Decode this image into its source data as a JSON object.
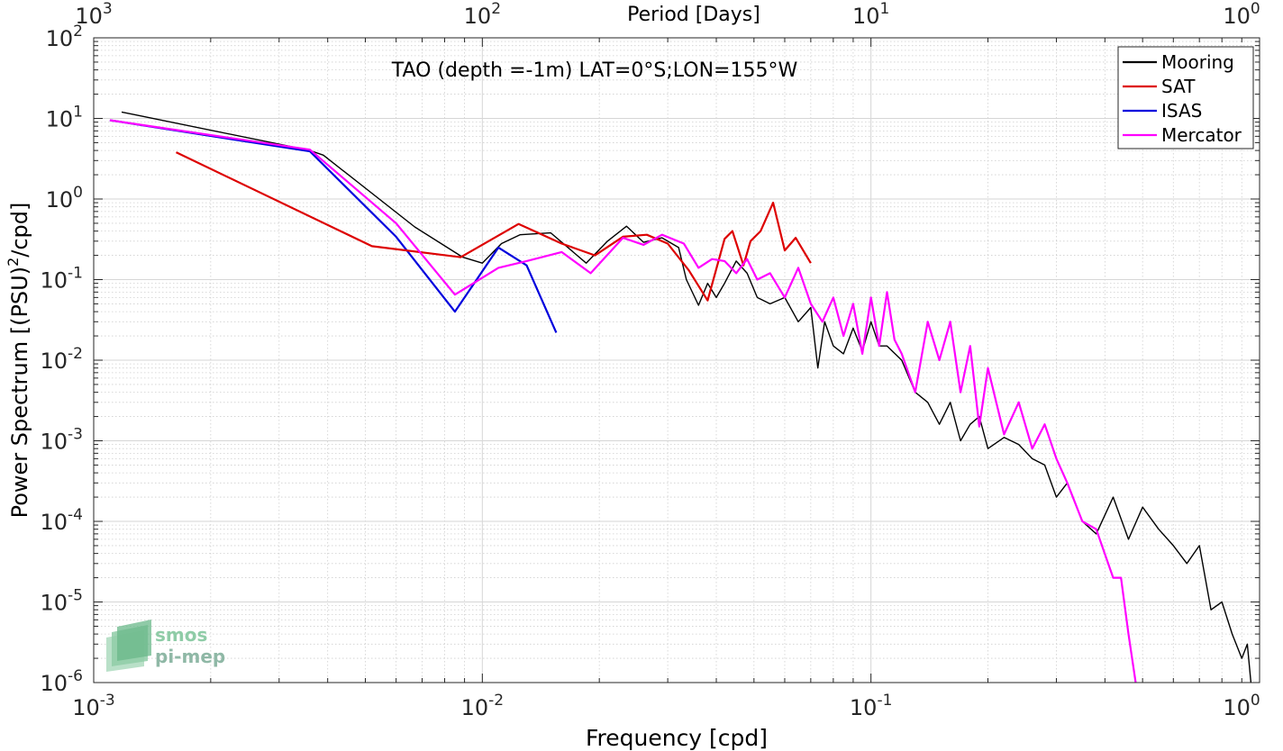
{
  "chart_data": {
    "type": "line",
    "title": "TAO (depth =-1m) LAT=0°S;LON=155°W",
    "xlabel": "Frequency [cpd]",
    "ylabel": "Power Spectrum [(PSU)^2/cpd]",
    "top_xlabel": "Period [Days]",
    "x_scale": "log",
    "y_scale": "log",
    "xlim": [
      0.001,
      1
    ],
    "ylim": [
      1e-06,
      100
    ],
    "grid": true,
    "legend_position": "top-right",
    "x_tick_labels": [
      {
        "value": 0.001,
        "base": "10",
        "exp": "-3"
      },
      {
        "value": 0.01,
        "base": "10",
        "exp": "-2"
      },
      {
        "value": 0.1,
        "base": "10",
        "exp": "-1"
      },
      {
        "value": 1,
        "base": "10",
        "exp": "0"
      }
    ],
    "top_tick_labels": [
      {
        "value": 0.001,
        "base": "10",
        "exp": "3"
      },
      {
        "value": 0.01,
        "base": "10",
        "exp": "2"
      },
      {
        "value": 0.1,
        "base": "10",
        "exp": "1"
      },
      {
        "value": 1,
        "base": "10",
        "exp": "0"
      }
    ],
    "y_tick_labels": [
      {
        "value": 100,
        "base": "10",
        "exp": "2"
      },
      {
        "value": 10,
        "base": "10",
        "exp": "1"
      },
      {
        "value": 1,
        "base": "10",
        "exp": "0"
      },
      {
        "value": 0.1,
        "base": "10",
        "exp": "-1"
      },
      {
        "value": 0.01,
        "base": "10",
        "exp": "-2"
      },
      {
        "value": 0.001,
        "base": "10",
        "exp": "-3"
      },
      {
        "value": 0.0001,
        "base": "10",
        "exp": "-4"
      },
      {
        "value": 1e-05,
        "base": "10",
        "exp": "-5"
      },
      {
        "value": 1e-06,
        "base": "10",
        "exp": "-6"
      }
    ],
    "series": [
      {
        "name": "Mooring",
        "color": "#000000",
        "x": [
          0.00118,
          0.0036,
          0.0039,
          0.0067,
          0.0089,
          0.01,
          0.0112,
          0.0125,
          0.015,
          0.0185,
          0.021,
          0.0235,
          0.026,
          0.029,
          0.032,
          0.0335,
          0.036,
          0.038,
          0.04,
          0.042,
          0.045,
          0.048,
          0.051,
          0.055,
          0.06,
          0.065,
          0.07,
          0.073,
          0.076,
          0.08,
          0.085,
          0.09,
          0.095,
          0.1,
          0.105,
          0.11,
          0.12,
          0.13,
          0.14,
          0.15,
          0.16,
          0.17,
          0.18,
          0.19,
          0.2,
          0.22,
          0.24,
          0.26,
          0.28,
          0.3,
          0.32,
          0.35,
          0.38,
          0.42,
          0.46,
          0.5,
          0.55,
          0.6,
          0.65,
          0.7,
          0.75,
          0.8,
          0.85,
          0.9,
          0.93,
          0.95
        ],
        "values": [
          12,
          4.0,
          3.5,
          0.45,
          0.19,
          0.16,
          0.28,
          0.36,
          0.38,
          0.16,
          0.3,
          0.46,
          0.29,
          0.33,
          0.25,
          0.1,
          0.048,
          0.09,
          0.06,
          0.09,
          0.17,
          0.12,
          0.06,
          0.05,
          0.06,
          0.03,
          0.045,
          0.008,
          0.03,
          0.015,
          0.012,
          0.025,
          0.013,
          0.03,
          0.015,
          0.015,
          0.01,
          0.004,
          0.003,
          0.0016,
          0.003,
          0.001,
          0.0016,
          0.002,
          0.0008,
          0.0011,
          0.0009,
          0.0006,
          0.0005,
          0.0002,
          0.0003,
          0.0001,
          7e-05,
          0.0002,
          6e-05,
          0.00015,
          8e-05,
          5e-05,
          3e-05,
          5e-05,
          8e-06,
          1e-05,
          4e-06,
          2e-06,
          3e-06,
          1e-06
        ]
      },
      {
        "name": "SAT",
        "color": "#dd0000",
        "x": [
          0.00163,
          0.0052,
          0.0088,
          0.0124,
          0.016,
          0.0195,
          0.023,
          0.0265,
          0.03,
          0.034,
          0.038,
          0.042,
          0.044,
          0.047,
          0.049,
          0.052,
          0.056,
          0.06,
          0.064,
          0.07
        ],
        "values": [
          3.8,
          0.26,
          0.19,
          0.49,
          0.28,
          0.2,
          0.34,
          0.36,
          0.28,
          0.13,
          0.055,
          0.32,
          0.4,
          0.15,
          0.3,
          0.4,
          0.9,
          0.23,
          0.33,
          0.16
        ]
      },
      {
        "name": "ISAS",
        "color": "#0000dd",
        "x": [
          0.0011,
          0.0036,
          0.006,
          0.0085,
          0.011,
          0.013,
          0.0155
        ],
        "values": [
          9.5,
          3.9,
          0.34,
          0.04,
          0.25,
          0.15,
          0.022
        ]
      },
      {
        "name": "Mercator",
        "color": "#ff00ff",
        "x": [
          0.0011,
          0.0036,
          0.006,
          0.0085,
          0.011,
          0.013,
          0.016,
          0.019,
          0.023,
          0.026,
          0.029,
          0.033,
          0.036,
          0.039,
          0.042,
          0.045,
          0.048,
          0.051,
          0.055,
          0.06,
          0.065,
          0.07,
          0.075,
          0.08,
          0.085,
          0.09,
          0.095,
          0.1,
          0.105,
          0.11,
          0.115,
          0.12,
          0.13,
          0.14,
          0.15,
          0.16,
          0.17,
          0.18,
          0.19,
          0.2,
          0.22,
          0.24,
          0.26,
          0.28,
          0.3,
          0.32,
          0.35,
          0.38,
          0.42,
          0.44,
          0.46,
          0.48
        ],
        "values": [
          9.5,
          4.1,
          0.5,
          0.065,
          0.14,
          0.17,
          0.22,
          0.12,
          0.33,
          0.27,
          0.36,
          0.28,
          0.14,
          0.18,
          0.17,
          0.12,
          0.18,
          0.1,
          0.12,
          0.06,
          0.14,
          0.05,
          0.03,
          0.06,
          0.02,
          0.05,
          0.012,
          0.06,
          0.015,
          0.07,
          0.018,
          0.012,
          0.004,
          0.03,
          0.01,
          0.03,
          0.004,
          0.015,
          0.0015,
          0.008,
          0.0012,
          0.003,
          0.0008,
          0.0016,
          0.0006,
          0.0003,
          0.0001,
          8e-05,
          2e-05,
          2e-05,
          4e-06,
          1e-06
        ]
      }
    ]
  },
  "logo": {
    "line1": "smos",
    "line2": "pi-mep"
  }
}
